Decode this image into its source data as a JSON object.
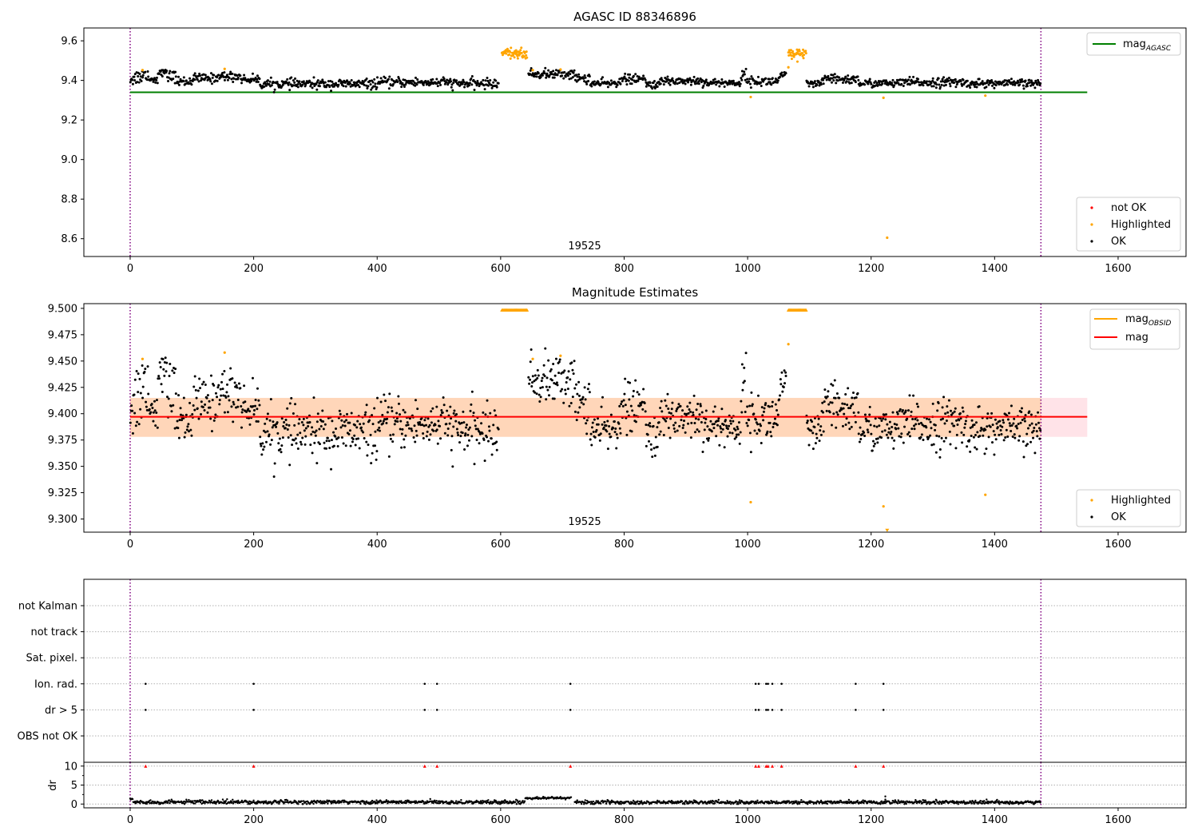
{
  "chart_data": [
    {
      "type": "scatter",
      "title": "AGASC ID 88346896",
      "xlim": [
        -75,
        1710
      ],
      "ylim": [
        8.51,
        9.665
      ],
      "x_ticks": [
        0,
        200,
        400,
        600,
        800,
        1000,
        1200,
        1400,
        1600
      ],
      "y_ticks": [
        8.6,
        8.8,
        9.0,
        9.2,
        9.4,
        9.6
      ],
      "y_tick_labels": [
        "8.6",
        "8.8",
        "9.0",
        "9.2",
        "9.4",
        "9.6"
      ],
      "obsid_label": "19525",
      "obsid_label_x": 736,
      "obsid_boundaries": [
        0,
        1475
      ],
      "reference_line": {
        "label": "mag_AGASC",
        "value": 9.34,
        "x_range": [
          0,
          1550
        ],
        "color": "#008000"
      },
      "legend_top": {
        "position": "top-right",
        "entries": [
          {
            "label": "mag",
            "subscript": "AGASC",
            "color": "#008000",
            "kind": "line"
          }
        ]
      },
      "legend_bottom": {
        "position": "bottom-right",
        "entries": [
          {
            "label": "not OK",
            "color": "#ff0000",
            "kind": "point"
          },
          {
            "label": "Highlighted",
            "color": "#ffa500",
            "kind": "point"
          },
          {
            "label": "OK",
            "color": "#000000",
            "kind": "point"
          }
        ]
      },
      "grid": false,
      "series": [
        {
          "name": "OK",
          "color": "#000000",
          "segments": [
            {
              "x_range": [
                0,
                10
              ],
              "mean": 9.41,
              "spread": 0.018
            },
            {
              "x_range": [
                10,
                20
              ],
              "mean": 9.42,
              "spread": 0.02
            },
            {
              "x_range": [
                20,
                30
              ],
              "mean": 9.43,
              "spread": 0.015
            },
            {
              "x_range": [
                30,
                45
              ],
              "mean": 9.405,
              "spread": 0.01
            },
            {
              "x_range": [
                45,
                60
              ],
              "mean": 9.44,
              "spread": 0.008
            },
            {
              "x_range": [
                60,
                75
              ],
              "mean": 9.42,
              "spread": 0.015
            },
            {
              "x_range": [
                75,
                100
              ],
              "mean": 9.395,
              "spread": 0.012
            },
            {
              "x_range": [
                100,
                140
              ],
              "mean": 9.41,
              "spread": 0.012
            },
            {
              "x_range": [
                140,
                180
              ],
              "mean": 9.42,
              "spread": 0.012
            },
            {
              "x_range": [
                180,
                210
              ],
              "mean": 9.405,
              "spread": 0.01
            },
            {
              "x_range": [
                210,
                400
              ],
              "mean": 9.382,
              "spread": 0.012
            },
            {
              "x_range": [
                400,
                520
              ],
              "mean": 9.39,
              "spread": 0.012
            },
            {
              "x_range": [
                520,
                597
              ],
              "mean": 9.384,
              "spread": 0.012
            },
            {
              "x_range": [
                645,
                720
              ],
              "mean": 9.432,
              "spread": 0.012
            },
            {
              "x_range": [
                720,
                745
              ],
              "mean": 9.41,
              "spread": 0.012
            },
            {
              "x_range": [
                745,
                790
              ],
              "mean": 9.384,
              "spread": 0.01
            },
            {
              "x_range": [
                790,
                835
              ],
              "mean": 9.405,
              "spread": 0.012
            },
            {
              "x_range": [
                835,
                860
              ],
              "mean": 9.38,
              "spread": 0.01
            },
            {
              "x_range": [
                860,
                930
              ],
              "mean": 9.398,
              "spread": 0.012
            },
            {
              "x_range": [
                930,
                990
              ],
              "mean": 9.388,
              "spread": 0.01
            },
            {
              "x_range": [
                990,
                1000
              ],
              "mean": 9.425,
              "spread": 0.015
            },
            {
              "x_range": [
                1000,
                1050
              ],
              "mean": 9.395,
              "spread": 0.012
            },
            {
              "x_range": [
                1050,
                1063
              ],
              "mean": 9.425,
              "spread": 0.012
            },
            {
              "x_range": [
                1095,
                1120
              ],
              "mean": 9.38,
              "spread": 0.01
            },
            {
              "x_range": [
                1120,
                1180
              ],
              "mean": 9.405,
              "spread": 0.012
            },
            {
              "x_range": [
                1180,
                1250
              ],
              "mean": 9.385,
              "spread": 0.01
            },
            {
              "x_range": [
                1250,
                1350
              ],
              "mean": 9.39,
              "spread": 0.012
            },
            {
              "x_range": [
                1350,
                1475
              ],
              "mean": 9.385,
              "spread": 0.01
            }
          ]
        },
        {
          "name": "Highlighted",
          "color": "#ffa500",
          "clusters": [
            {
              "x_range": [
                602,
                643
              ],
              "mean": 9.535,
              "spread": 0.012
            },
            {
              "x_range": [
                1066,
                1095
              ],
              "mean": 9.535,
              "spread": 0.012
            }
          ],
          "points": [
            [
              20,
              9.452
            ],
            [
              153,
              9.458
            ],
            [
              652,
              9.452
            ],
            [
              697,
              9.455
            ],
            [
              1005,
              9.316
            ],
            [
              1066,
              9.466
            ],
            [
              1220,
              9.312
            ],
            [
              1226,
              8.605
            ],
            [
              1385,
              9.323
            ]
          ]
        }
      ]
    },
    {
      "type": "scatter",
      "title": "Magnitude Estimates",
      "xlim": [
        -75,
        1710
      ],
      "ylim": [
        9.2875,
        9.5045
      ],
      "x_ticks": [
        0,
        200,
        400,
        600,
        800,
        1000,
        1200,
        1400,
        1600
      ],
      "y_ticks": [
        9.3,
        9.325,
        9.35,
        9.375,
        9.4,
        9.425,
        9.45,
        9.475,
        9.5
      ],
      "y_tick_labels": [
        "9.300",
        "9.325",
        "9.350",
        "9.375",
        "9.400",
        "9.425",
        "9.450",
        "9.475",
        "9.500"
      ],
      "obsid_label": "19525",
      "obsid_label_x": 736,
      "obsid_boundaries": [
        0,
        1475
      ],
      "mag_line": {
        "label": "mag",
        "value": 9.397,
        "x_range": [
          0,
          1550
        ],
        "color": "#ff0000"
      },
      "mag_band": {
        "low": 9.378,
        "high": 9.415,
        "x_range": [
          0,
          1550
        ],
        "color": "#ffc0cb"
      },
      "mag_obsid_band": {
        "low": 9.378,
        "high": 9.415,
        "x_range": [
          0,
          1475
        ],
        "color": "#ffa500"
      },
      "legend_top": {
        "position": "top-right",
        "entries": [
          {
            "label": "mag",
            "subscript": "OBSID",
            "color": "#ffa500",
            "kind": "line"
          },
          {
            "label": "mag",
            "color": "#ff0000",
            "kind": "line"
          }
        ]
      },
      "legend_bottom": {
        "position": "bottom-right",
        "entries": [
          {
            "label": "Highlighted",
            "color": "#ffa500",
            "kind": "point"
          },
          {
            "label": "OK",
            "color": "#000000",
            "kind": "point"
          }
        ]
      },
      "grid": false,
      "series": [
        {
          "name": "OK",
          "color": "#000000",
          "same_as_panel": 0
        },
        {
          "name": "Highlighted",
          "color": "#ffa500",
          "clipped_top": [
            {
              "x_range": [
                602,
                643
              ],
              "value": 9.5
            },
            {
              "x_range": [
                1066,
                1095
              ],
              "value": 9.5
            }
          ],
          "clipped_bottom": [
            {
              "x": 1226,
              "value": 9.29
            }
          ],
          "points": [
            [
              20,
              9.452
            ],
            [
              153,
              9.458
            ],
            [
              652,
              9.452
            ],
            [
              697,
              9.455
            ],
            [
              1005,
              9.316
            ],
            [
              1066,
              9.466
            ],
            [
              1220,
              9.312
            ],
            [
              1385,
              9.323
            ]
          ]
        }
      ]
    },
    {
      "type": "scatter",
      "title": "",
      "xlim": [
        -75,
        1710
      ],
      "x_ticks": [
        0,
        200,
        400,
        600,
        800,
        1000,
        1200,
        1400,
        1600
      ],
      "obsid_boundaries": [
        0,
        1475
      ],
      "flag_rows": [
        "not Kalman",
        "not track",
        "Sat. pixel.",
        "Ion. rad.",
        "dr > 5",
        "OBS not OK"
      ],
      "flags": {
        "Ion. rad.": [
          25,
          200,
          477,
          497,
          713,
          1013,
          1018,
          1030,
          1033,
          1040,
          1055,
          1175,
          1220
        ],
        "dr > 5": [
          25,
          200,
          477,
          497,
          713,
          1013,
          1018,
          1030,
          1033,
          1040,
          1055,
          1175,
          1220
        ]
      },
      "dr": {
        "ylabel": "dr",
        "ylim": [
          -1,
          11
        ],
        "y_ticks": [
          0,
          5,
          10
        ],
        "y_tick_labels": [
          "0",
          "5",
          "10"
        ],
        "clip_value": 10,
        "clipped_points": [
          25,
          200,
          477,
          497,
          713,
          1013,
          1018,
          1030,
          1033,
          1040,
          1055,
          1175,
          1220
        ],
        "segments": [
          {
            "x_range": [
              0,
              5
            ],
            "mean": 1.3,
            "spread": 0.15
          },
          {
            "x_range": [
              5,
              640
            ],
            "mean": 0.5,
            "spread": 0.25
          },
          {
            "x_range": [
              640,
              715
            ],
            "mean": 1.6,
            "spread": 0.15
          },
          {
            "x_range": [
              720,
              1475
            ],
            "mean": 0.45,
            "spread": 0.25
          }
        ],
        "extra_points": [
          [
            1223,
            2.0
          ],
          [
            1223,
            1.2
          ]
        ]
      }
    }
  ]
}
